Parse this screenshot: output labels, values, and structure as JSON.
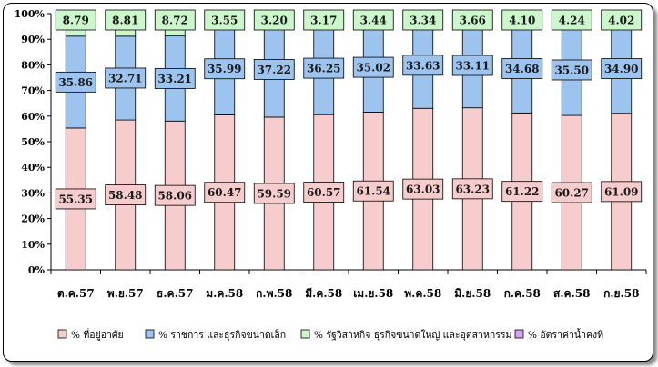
{
  "chart_data": {
    "type": "bar",
    "stacked": true,
    "normalized_percent": true,
    "categories": [
      "ต.ค.57",
      "พ.ย.57",
      "ธ.ค.57",
      "ม.ค.58",
      "ก.พ.58",
      "มี.ค.58",
      "เม.ย.58",
      "พ.ค.58",
      "มิ.ย.58",
      "ก.ค.58",
      "ส.ค.58",
      "ก.ย.58"
    ],
    "series": [
      {
        "name": "% ที่อยู่อาศัย",
        "color": "#f7cccc",
        "values": [
          55.35,
          58.48,
          58.06,
          60.47,
          59.59,
          60.57,
          61.54,
          63.03,
          63.23,
          61.22,
          60.27,
          61.09
        ]
      },
      {
        "name": "% ราชการ และธุรกิจขนาดเล็ก",
        "color": "#9cc4ee",
        "values": [
          35.86,
          32.71,
          33.21,
          35.99,
          37.22,
          36.25,
          35.02,
          33.63,
          33.11,
          34.68,
          35.5,
          34.9
        ]
      },
      {
        "name": "% รัฐวิสาหกิจ ธุรกิจขนาดใหญ่ และอุตสาหกรรม",
        "color": "#ccf7cc",
        "values": [
          8.79,
          8.81,
          8.72,
          3.55,
          3.2,
          3.17,
          3.44,
          3.34,
          3.66,
          4.1,
          4.24,
          4.02
        ]
      },
      {
        "name": "% อัตราค่าน้ำคงที่",
        "color": "#d9a3ef",
        "values": [
          0,
          0,
          0,
          0,
          0,
          0,
          0,
          0,
          0,
          0,
          0,
          0
        ]
      }
    ],
    "yticks": [
      "0%",
      "10%",
      "20%",
      "30%",
      "40%",
      "50%",
      "60%",
      "70%",
      "80%",
      "90%",
      "100%"
    ],
    "ylim": [
      0,
      100
    ],
    "grid": false,
    "legend_position": "bottom"
  }
}
